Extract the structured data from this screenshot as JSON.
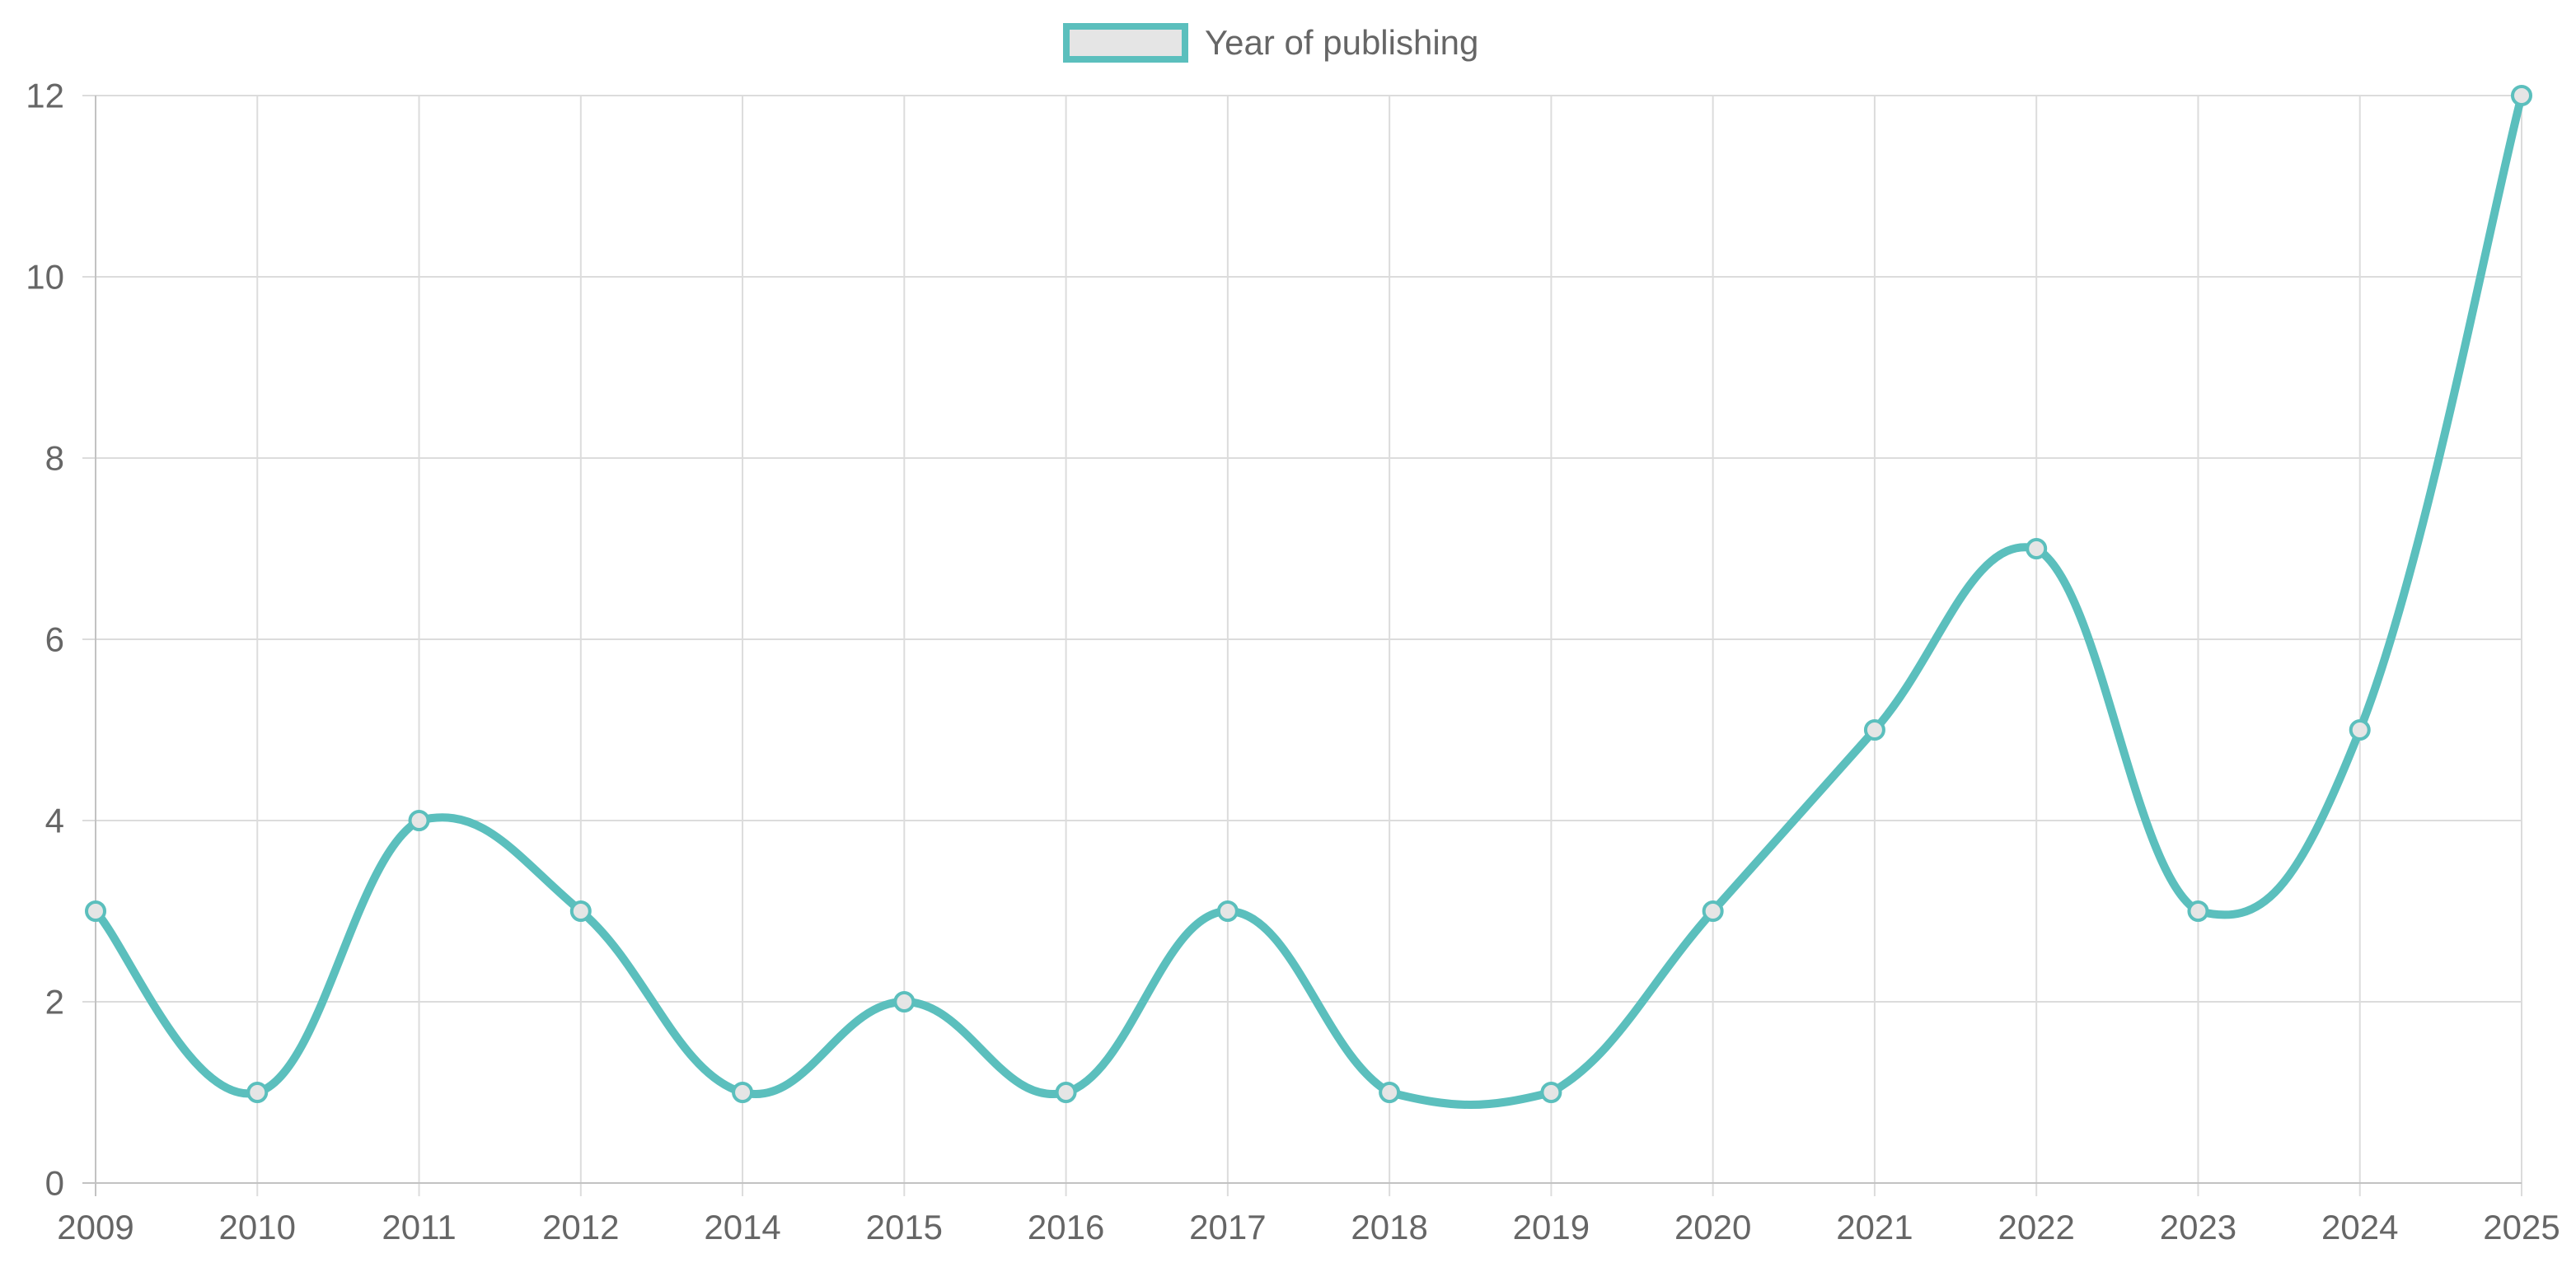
{
  "chart_data": {
    "type": "line",
    "categories": [
      "2009",
      "2010",
      "2011",
      "2012",
      "2014",
      "2015",
      "2016",
      "2017",
      "2018",
      "2019",
      "2020",
      "2021",
      "2022",
      "2023",
      "2024",
      "2025"
    ],
    "series": [
      {
        "name": "Year of publishing",
        "values": [
          3,
          1,
          4,
          3,
          1,
          2,
          1,
          3,
          1,
          1,
          3,
          5,
          7,
          3,
          5,
          12
        ]
      }
    ],
    "ylim": [
      0,
      12
    ],
    "yticks": [
      "0",
      "2",
      "4",
      "6",
      "8",
      "10",
      "12"
    ],
    "grid": true,
    "legend_position": "top-center",
    "line_smooth": true,
    "colors": {
      "line": "#5bbfbd",
      "legend_fill": "#e5e5e5",
      "grid": "#dcdcdc",
      "text": "#666666"
    }
  }
}
